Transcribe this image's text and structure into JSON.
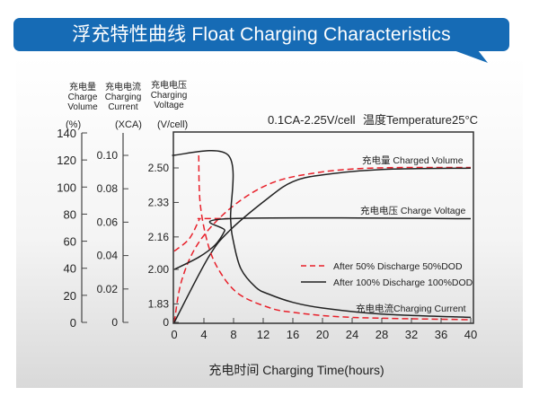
{
  "header": {
    "title": "浮充特性曲线 Float Charging Characteristics",
    "banner_color": "#166bb5"
  },
  "chart_data": {
    "type": "line",
    "condition": "0.1CA-2.25V/cell",
    "temperature": "温度Temperature25°C",
    "xlabel": "充电时间 Charging Time(hours)",
    "xlim": [
      0,
      40
    ],
    "xticks": [
      "0",
      "4",
      "8",
      "12",
      "16",
      "20",
      "24",
      "28",
      "32",
      "36",
      "40"
    ],
    "axes": {
      "volume": {
        "label_cn": "充电量",
        "label_en1": "Charge",
        "label_en2": "Volume",
        "unit": "(%)",
        "ylim": [
          0,
          140
        ],
        "ticks": [
          "0",
          "20",
          "40",
          "60",
          "80",
          "100",
          "120",
          "140"
        ]
      },
      "current": {
        "label_cn": "充电电流",
        "label_en1": "Charging",
        "label_en2": "Current",
        "unit": "(XCA)",
        "ylim": [
          0,
          0.1
        ],
        "ticks": [
          "0",
          "0.02",
          "0.04",
          "0.06",
          "0.08",
          "0.10"
        ]
      },
      "voltage": {
        "label_cn": "充电电压",
        "label_en1": "Charging",
        "label_en2": "Voltage",
        "unit": "(V/cell)",
        "ticks": [
          "0",
          "1.83",
          "2.00",
          "2.16",
          "2.33",
          "2.50"
        ]
      }
    },
    "curve_labels": {
      "volume": "充电量 Charged Volume",
      "voltage": "充电电压 Charge Voltage",
      "current": "充电电流Charging Current"
    },
    "legend": [
      {
        "name": "After 50% Discharge 50%DOD",
        "color": "#e8202a",
        "style": "dashed"
      },
      {
        "name": "After 100%  Discharge 100%DOD",
        "color": "#222222",
        "style": "solid"
      }
    ],
    "series": [
      {
        "group": "50%DOD",
        "quantity": "volume",
        "points": [
          [
            0,
            0
          ],
          [
            1,
            31
          ],
          [
            3.3,
            59
          ],
          [
            7.5,
            84
          ],
          [
            12.7,
            102
          ],
          [
            18.5,
            110
          ],
          [
            26.5,
            114
          ],
          [
            40,
            114.5
          ]
        ]
      },
      {
        "group": "100%DOD",
        "quantity": "volume",
        "points": [
          [
            0,
            0
          ],
          [
            4.6,
            48
          ],
          [
            7.5,
            68
          ],
          [
            12.7,
            92
          ],
          [
            16,
            104
          ],
          [
            20,
            109
          ],
          [
            28,
            113
          ],
          [
            40,
            114
          ]
        ]
      },
      {
        "group": "50%DOD",
        "quantity": "voltage",
        "points": [
          [
            0,
            2.09
          ],
          [
            2,
            2.15
          ],
          [
            3.3,
            2.24
          ],
          [
            3.5,
            2.25
          ],
          [
            7.3,
            2.25
          ]
        ]
      },
      {
        "group": "100%DOD",
        "quantity": "voltage",
        "points": [
          [
            0,
            2.0
          ],
          [
            3.3,
            2.06
          ],
          [
            5.5,
            2.12
          ],
          [
            6.8,
            2.19
          ],
          [
            7.3,
            2.25
          ],
          [
            40,
            2.25
          ]
        ]
      },
      {
        "group": "50%DOD",
        "quantity": "current",
        "points": [
          [
            3.3,
            0.1
          ],
          [
            3.5,
            0.071
          ],
          [
            4.6,
            0.046
          ],
          [
            6.2,
            0.03
          ],
          [
            8.7,
            0.017
          ],
          [
            12.7,
            0.009
          ],
          [
            16,
            0.006
          ],
          [
            24,
            0.003
          ],
          [
            40,
            0.0016
          ]
        ]
      },
      {
        "group": "100%DOD",
        "quantity": "current",
        "points": [
          [
            -0.3,
            0.1
          ],
          [
            7.3,
            0.1
          ],
          [
            7.6,
            0.062
          ],
          [
            8,
            0.048
          ],
          [
            9,
            0.032
          ],
          [
            11,
            0.021
          ],
          [
            12.7,
            0.017
          ],
          [
            16,
            0.012
          ],
          [
            20,
            0.0086
          ],
          [
            28,
            0.005
          ],
          [
            40,
            0.003
          ]
        ]
      }
    ]
  }
}
